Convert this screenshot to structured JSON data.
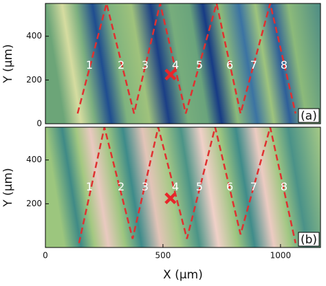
{
  "chart_data": [
    {
      "type": "image",
      "ylabel": "Y (μm)",
      "panel_label": "(a)",
      "xlim": [
        0,
        1170
      ],
      "ylim": [
        0,
        550
      ],
      "yticks": [
        0,
        200,
        400
      ],
      "path": {
        "color": "#e03030",
        "x": [
          137,
          260,
          377,
          488,
          597,
          728,
          830,
          956,
          1064
        ],
        "y": [
          47,
          550,
          47,
          550,
          47,
          550,
          47,
          550,
          47
        ]
      },
      "markers": {
        "labels": [
          "1",
          "2",
          "3",
          "4",
          "5",
          "6",
          "7",
          "8"
        ],
        "x": [
          187,
          322,
          424,
          553,
          655,
          784,
          886,
          1015
        ],
        "y": [
          265,
          265,
          265,
          265,
          265,
          265,
          265,
          265
        ]
      },
      "cross": {
        "x": 532,
        "y": 225,
        "color": "#e8262b"
      }
    },
    {
      "type": "image",
      "ylabel": "Y (μm)",
      "xlabel": "X (μm)",
      "panel_label": "(b)",
      "xlim": [
        0,
        1170
      ],
      "ylim": [
        0,
        550
      ],
      "yticks": [
        200,
        400
      ],
      "xticks": [
        0,
        500,
        1000
      ],
      "path": {
        "color": "#e03030",
        "x": [
          143,
          251,
          371,
          480,
          602,
          722,
          830,
          956,
          1064
        ],
        "y": [
          20,
          550,
          40,
          550,
          40,
          550,
          60,
          550,
          20
        ]
      },
      "markers": {
        "labels": [
          "1",
          "2",
          "3",
          "4",
          "5",
          "6",
          "7",
          "8"
        ],
        "x": [
          187,
          322,
          424,
          553,
          655,
          784,
          886,
          1015
        ],
        "y": [
          275,
          275,
          275,
          275,
          275,
          275,
          275,
          275
        ]
      },
      "cross": {
        "x": 532,
        "y": 225,
        "color": "#e8262b"
      }
    }
  ]
}
